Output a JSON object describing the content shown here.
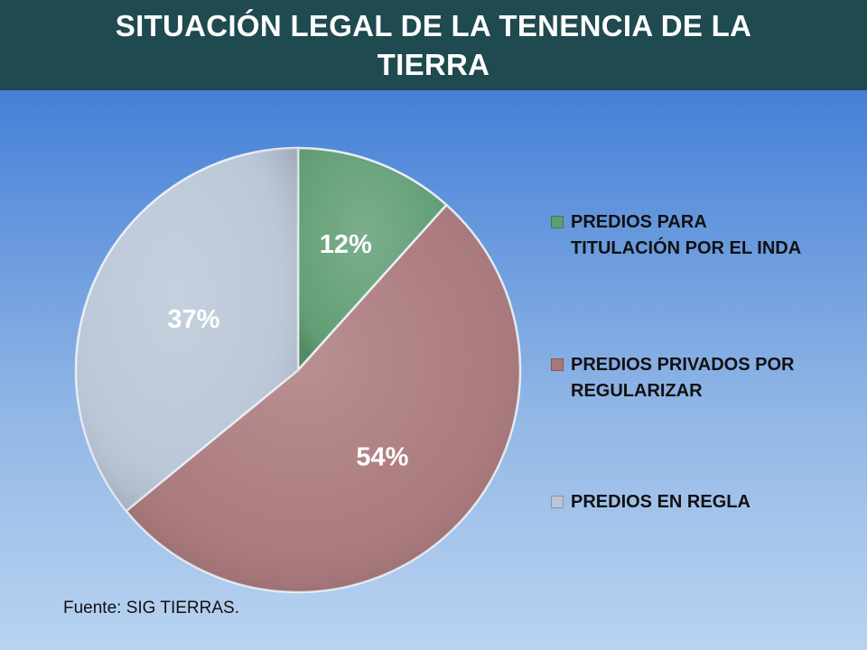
{
  "title": "SITUACIÓN LEGAL DE LA TENENCIA DE LA TIERRA",
  "source_note": "Fuente: SIG TIERRAS.",
  "chart_data": {
    "type": "pie",
    "categories": [
      "PREDIOS PARA TITULACIÓN POR EL INDA",
      "PREDIOS PRIVADOS POR REGULARIZAR",
      "PREDIOS EN REGLA"
    ],
    "values": [
      12,
      54,
      37
    ],
    "labels": [
      "12%",
      "54%",
      "37%"
    ],
    "colors": [
      "#5f9d73",
      "#a9777a",
      "#b9c6d7"
    ],
    "start_angle_deg": 0,
    "direction": "clockwise",
    "legend_position": "right"
  }
}
